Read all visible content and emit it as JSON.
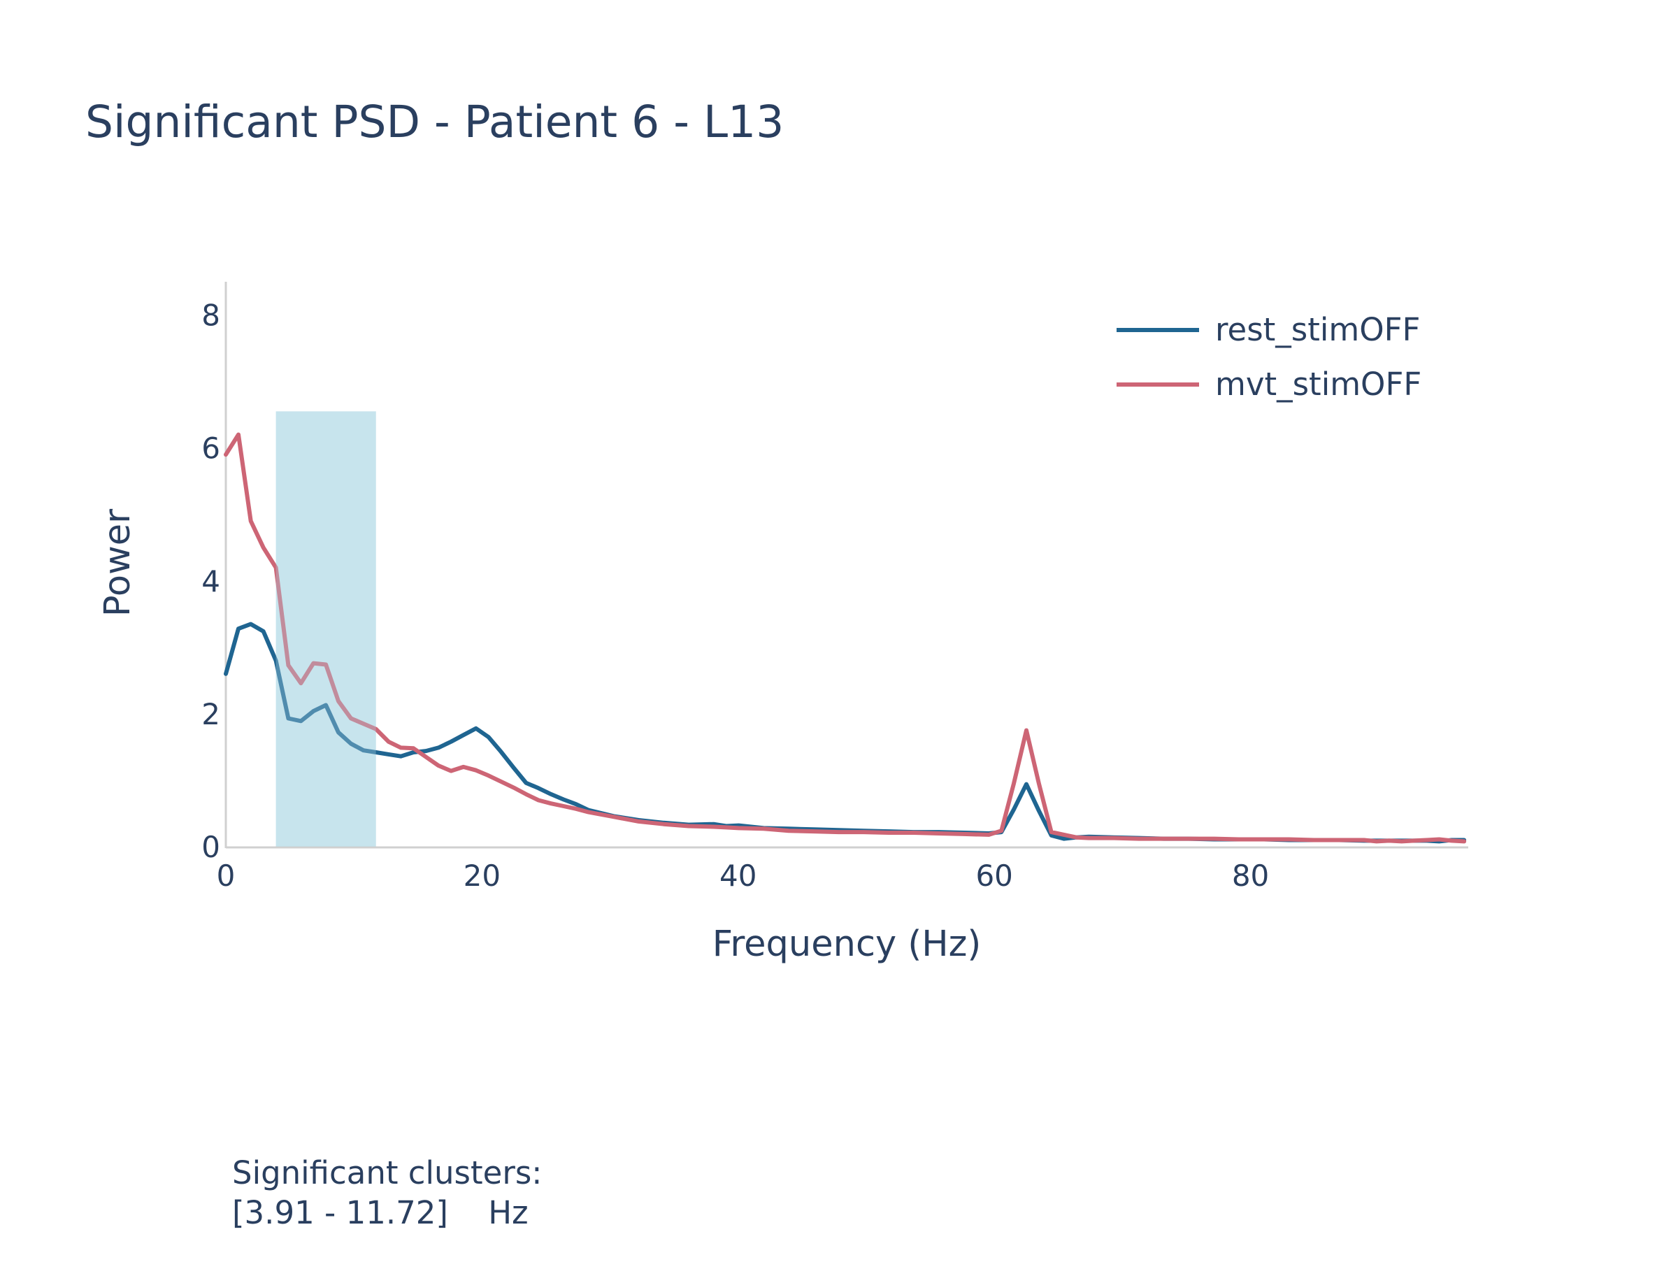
{
  "chart_data": {
    "type": "line",
    "title": "Significant PSD - Patient 6 - L13",
    "xlabel": "Frequency (Hz)",
    "ylabel": "Power",
    "xlim": [
      0,
      97
    ],
    "ylim": [
      0,
      8.5
    ],
    "x_ticks": [
      0,
      20,
      40,
      60,
      80
    ],
    "y_ticks": [
      0,
      2,
      4,
      6,
      8
    ],
    "grid": false,
    "legend_position": "top-right",
    "x": [
      0,
      0.98,
      1.95,
      2.93,
      3.91,
      4.88,
      5.86,
      6.84,
      7.81,
      8.79,
      9.77,
      10.74,
      11.72,
      12.7,
      13.67,
      14.65,
      15.63,
      16.6,
      17.58,
      18.55,
      19.53,
      20.51,
      21.48,
      22.46,
      23.44,
      24.41,
      25.39,
      26.37,
      27.34,
      28.32,
      30.27,
      32.23,
      34.18,
      36.13,
      38.09,
      39.06,
      40.04,
      41.99,
      43.95,
      45.9,
      47.85,
      49.8,
      51.76,
      53.71,
      55.66,
      57.62,
      59.57,
      60.55,
      61.52,
      62.5,
      63.48,
      64.45,
      65.43,
      66.41,
      67.38,
      69.34,
      71.29,
      73.24,
      75.2,
      77.15,
      79.1,
      81.05,
      83.01,
      84.96,
      86.91,
      88.87,
      89.84,
      90.82,
      91.8,
      92.77,
      93.75,
      94.73,
      95.7,
      96.68
    ],
    "series": [
      {
        "name": "rest_stimOFF",
        "color": "#1f6591",
        "values": [
          2.6,
          3.28,
          3.35,
          3.24,
          2.8,
          1.93,
          1.89,
          2.04,
          2.13,
          1.72,
          1.55,
          1.45,
          1.42,
          1.39,
          1.36,
          1.42,
          1.44,
          1.49,
          1.58,
          1.68,
          1.78,
          1.65,
          1.43,
          1.19,
          0.96,
          0.88,
          0.79,
          0.71,
          0.64,
          0.55,
          0.46,
          0.4,
          0.36,
          0.33,
          0.34,
          0.31,
          0.32,
          0.28,
          0.27,
          0.26,
          0.25,
          0.24,
          0.23,
          0.22,
          0.22,
          0.21,
          0.2,
          0.22,
          0.56,
          0.94,
          0.54,
          0.17,
          0.12,
          0.14,
          0.15,
          0.14,
          0.13,
          0.12,
          0.12,
          0.11,
          0.11,
          0.11,
          0.1,
          0.1,
          0.1,
          0.09,
          0.09,
          0.09,
          0.09,
          0.09,
          0.09,
          0.08,
          0.1,
          0.1
        ]
      },
      {
        "name": "mvt_stimOFF",
        "color": "#cd6575",
        "values": [
          5.9,
          6.2,
          4.9,
          4.5,
          4.2,
          2.73,
          2.46,
          2.76,
          2.74,
          2.19,
          1.93,
          1.85,
          1.77,
          1.58,
          1.49,
          1.48,
          1.35,
          1.22,
          1.14,
          1.2,
          1.15,
          1.07,
          0.98,
          0.89,
          0.79,
          0.7,
          0.65,
          0.61,
          0.57,
          0.52,
          0.45,
          0.38,
          0.34,
          0.31,
          0.3,
          0.29,
          0.28,
          0.27,
          0.24,
          0.23,
          0.22,
          0.22,
          0.21,
          0.21,
          0.2,
          0.19,
          0.18,
          0.24,
          0.95,
          1.75,
          0.95,
          0.22,
          0.18,
          0.14,
          0.13,
          0.13,
          0.12,
          0.12,
          0.12,
          0.12,
          0.11,
          0.11,
          0.11,
          0.1,
          0.1,
          0.1,
          0.08,
          0.09,
          0.08,
          0.09,
          0.1,
          0.11,
          0.09,
          0.08
        ]
      }
    ],
    "significant_region": {
      "x_range": [
        3.91,
        11.72
      ],
      "y_max": 6.55,
      "color": "#add8e6"
    },
    "annotation_lines": [
      "Significant clusters:",
      "[3.91 - 11.72]    Hz"
    ]
  }
}
